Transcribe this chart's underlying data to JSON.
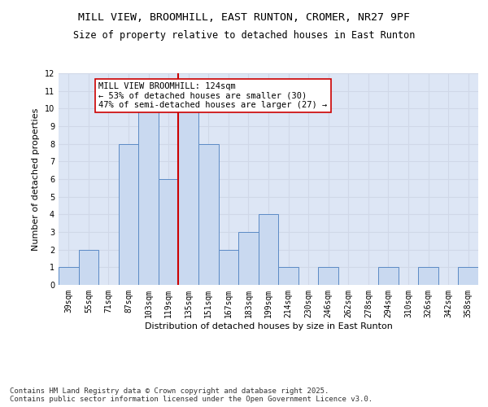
{
  "title_line1": "MILL VIEW, BROOMHILL, EAST RUNTON, CROMER, NR27 9PF",
  "title_line2": "Size of property relative to detached houses in East Runton",
  "xlabel": "Distribution of detached houses by size in East Runton",
  "ylabel": "Number of detached properties",
  "categories": [
    "39sqm",
    "55sqm",
    "71sqm",
    "87sqm",
    "103sqm",
    "119sqm",
    "135sqm",
    "151sqm",
    "167sqm",
    "183sqm",
    "199sqm",
    "214sqm",
    "230sqm",
    "246sqm",
    "262sqm",
    "278sqm",
    "294sqm",
    "310sqm",
    "326sqm",
    "342sqm",
    "358sqm"
  ],
  "values": [
    1,
    2,
    0,
    8,
    10,
    6,
    10,
    8,
    2,
    3,
    4,
    1,
    0,
    1,
    0,
    0,
    1,
    0,
    1,
    0,
    1
  ],
  "bar_color": "#c9d9f0",
  "bar_edge_color": "#5b8ac5",
  "grid_color": "#d0d8e8",
  "background_color": "#dde6f5",
  "vline_x": 5.5,
  "vline_color": "#cc0000",
  "annotation_text": "MILL VIEW BROOMHILL: 124sqm\n← 53% of detached houses are smaller (30)\n47% of semi-detached houses are larger (27) →",
  "annotation_box_color": "#ffffff",
  "annotation_box_edge": "#cc0000",
  "ylim": [
    0,
    12
  ],
  "yticks": [
    0,
    1,
    2,
    3,
    4,
    5,
    6,
    7,
    8,
    9,
    10,
    11,
    12
  ],
  "footer": "Contains HM Land Registry data © Crown copyright and database right 2025.\nContains public sector information licensed under the Open Government Licence v3.0.",
  "title_fontsize": 9.5,
  "subtitle_fontsize": 8.5,
  "axis_label_fontsize": 8,
  "tick_fontsize": 7,
  "annotation_fontsize": 7.5,
  "footer_fontsize": 6.5
}
